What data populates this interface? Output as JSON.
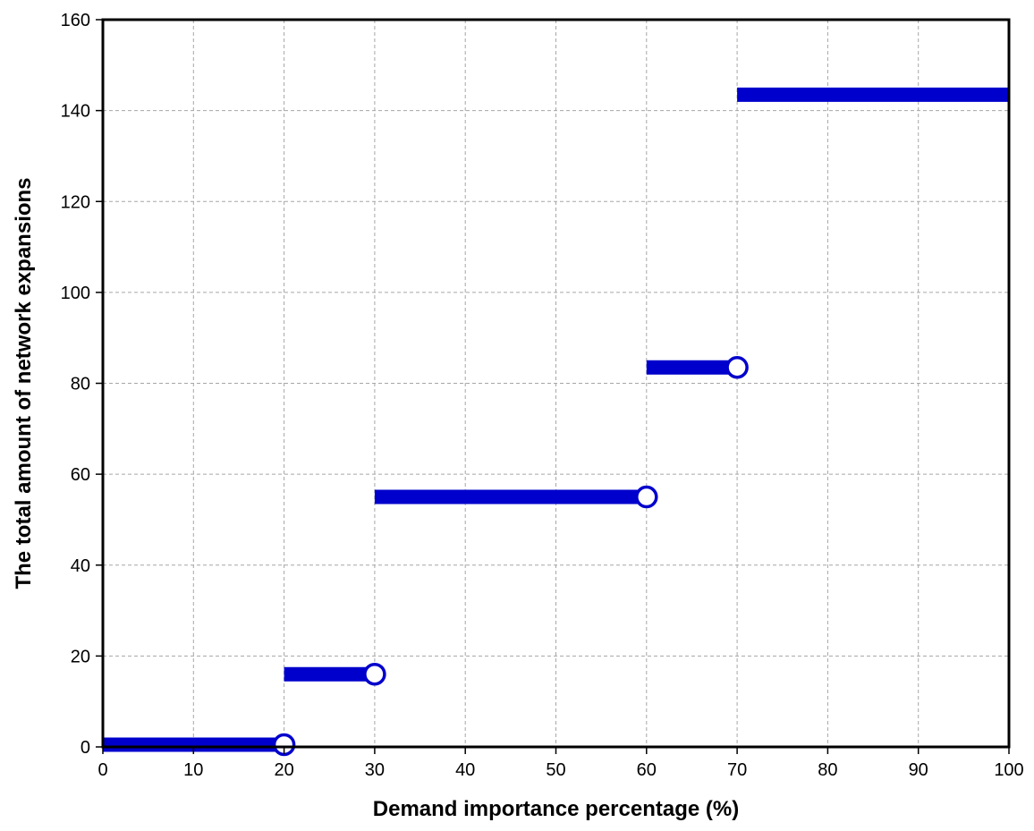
{
  "chart_data": {
    "type": "line",
    "title": "",
    "xlabel": "Demand importance percentage (%)",
    "ylabel": "The total amount of network expansions",
    "xlim": [
      0,
      100
    ],
    "ylim": [
      0,
      160
    ],
    "x_ticks": [
      0,
      10,
      20,
      30,
      40,
      50,
      60,
      70,
      80,
      90,
      100
    ],
    "y_ticks": [
      0,
      20,
      40,
      60,
      80,
      100,
      120,
      140,
      160
    ],
    "grid": true,
    "legend": "none",
    "series": [
      {
        "style": "step-segments",
        "segments": [
          {
            "x_start": 0,
            "x_end": 20,
            "y": 0.5,
            "open_end": true
          },
          {
            "x_start": 20,
            "x_end": 30,
            "y": 16,
            "open_end": true
          },
          {
            "x_start": 30,
            "x_end": 60,
            "y": 55,
            "open_end": true
          },
          {
            "x_start": 60,
            "x_end": 70,
            "y": 83.5,
            "open_end": true
          },
          {
            "x_start": 70,
            "x_end": 100,
            "y": 143.5,
            "open_end": false
          }
        ]
      }
    ],
    "colors": {
      "series": "#0000cc",
      "grid": "#a6a6a6",
      "axis": "#000000",
      "marker_fill": "#ffffff"
    }
  }
}
